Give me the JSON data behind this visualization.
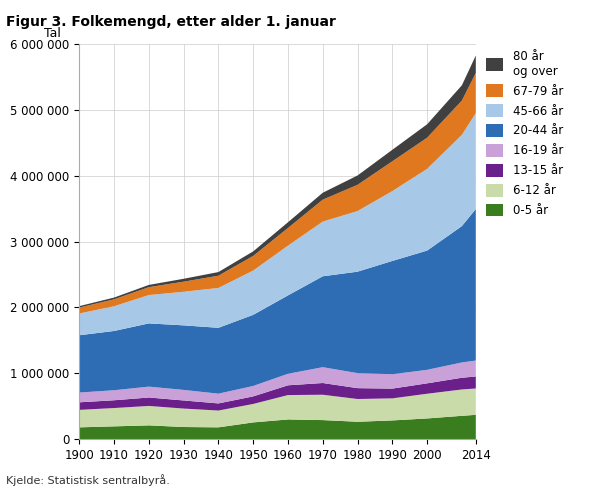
{
  "title": "Figur 3. Folkemengd, etter alder 1. januar",
  "ylabel": "Tal",
  "xlabel": "",
  "source": "Kjelde: Statistisk sentralbyrå.",
  "years": [
    1900,
    1910,
    1920,
    1930,
    1940,
    1950,
    1960,
    1970,
    1980,
    1990,
    2000,
    2010,
    2014
  ],
  "age_groups": [
    "0-5 år",
    "6-12 år",
    "13-15 år",
    "16-19 år",
    "20-44 år",
    "45-66 år",
    "67-79 år",
    "80 år\nog over"
  ],
  "colors": [
    "#3a7d1e",
    "#c8dba8",
    "#6a1f8a",
    "#c9a0d8",
    "#2e6db4",
    "#a8c8e8",
    "#e07820",
    "#404040"
  ],
  "data": {
    "0-5 år": [
      180000,
      195000,
      210000,
      185000,
      180000,
      255000,
      300000,
      290000,
      265000,
      285000,
      315000,
      355000,
      370000
    ],
    "6-12 år": [
      265000,
      278000,
      295000,
      280000,
      255000,
      280000,
      370000,
      385000,
      345000,
      335000,
      375000,
      400000,
      400000
    ],
    "13-15 år": [
      115000,
      118000,
      128000,
      123000,
      108000,
      115000,
      148000,
      178000,
      165000,
      148000,
      158000,
      178000,
      182000
    ],
    "16-19 år": [
      148000,
      152000,
      165000,
      160000,
      148000,
      158000,
      175000,
      240000,
      228000,
      218000,
      205000,
      232000,
      242000
    ],
    "20-44 år": [
      870000,
      900000,
      960000,
      980000,
      1000000,
      1080000,
      1190000,
      1380000,
      1540000,
      1720000,
      1810000,
      2070000,
      2300000
    ],
    "45-66 år": [
      330000,
      375000,
      430000,
      510000,
      605000,
      672000,
      755000,
      830000,
      920000,
      1060000,
      1240000,
      1385000,
      1455000
    ],
    "67-79 år": [
      90000,
      105000,
      120000,
      153000,
      186000,
      222000,
      268000,
      333000,
      398000,
      452000,
      473000,
      520000,
      610000
    ],
    "80 år\nog over": [
      22000,
      27000,
      34000,
      44000,
      55000,
      69000,
      87000,
      105000,
      142000,
      175000,
      204000,
      232000,
      265000
    ]
  },
  "ylim": [
    0,
    6000000
  ],
  "yticks": [
    0,
    1000000,
    2000000,
    3000000,
    4000000,
    5000000,
    6000000
  ],
  "xticks": [
    1900,
    1910,
    1920,
    1930,
    1940,
    1950,
    1960,
    1970,
    1980,
    1990,
    2000,
    2014
  ],
  "background_color": "#ffffff",
  "grid_color": "#cccccc"
}
